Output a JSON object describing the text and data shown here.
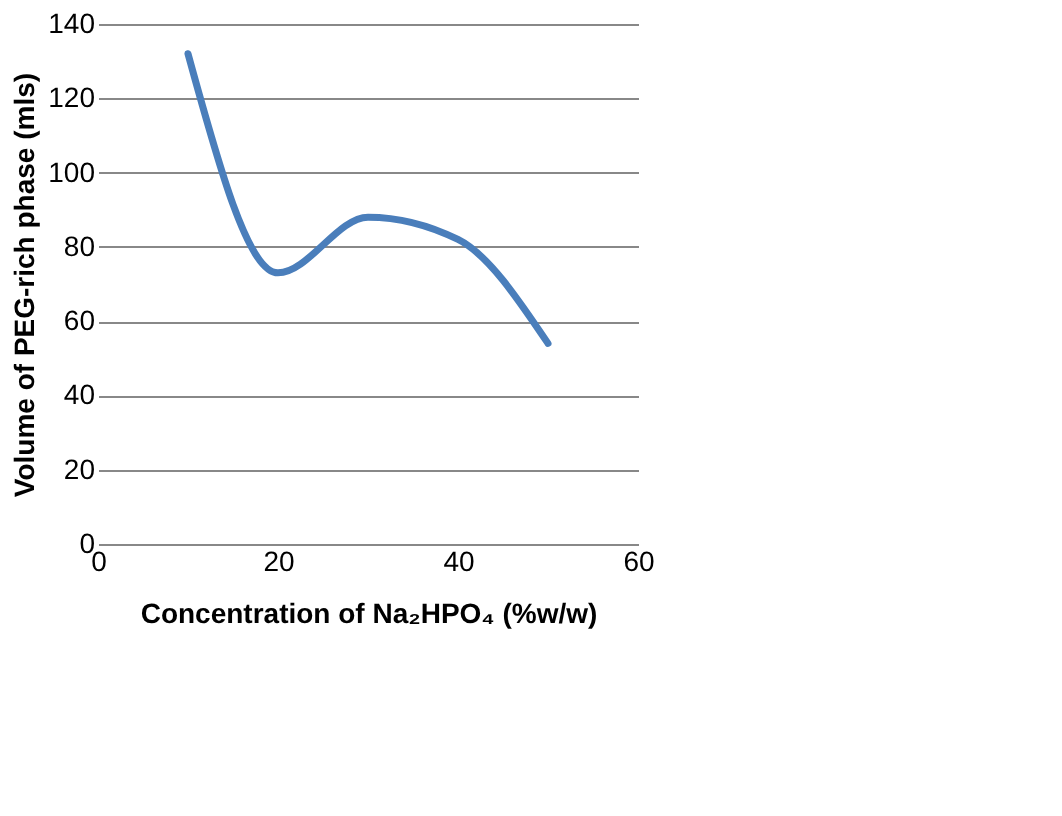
{
  "chart_data": {
    "type": "line",
    "xlabel": "Concentration of Na₂HPO₄ (%w/w)",
    "ylabel": "Volume of PEG-rich phase (mls)",
    "x": [
      10,
      20,
      30,
      40,
      50
    ],
    "series": [
      {
        "color": "#4a7ebb",
        "values": [
          132,
          73,
          88,
          82,
          54
        ]
      }
    ],
    "xlim": [
      0,
      60
    ],
    "xticks": [
      0,
      20,
      40,
      60
    ],
    "ylim": [
      0,
      140
    ],
    "yticks": [
      0,
      20,
      40,
      60,
      80,
      100,
      120,
      140
    ],
    "grid": "y",
    "marker": "none",
    "line_style": "solid"
  }
}
